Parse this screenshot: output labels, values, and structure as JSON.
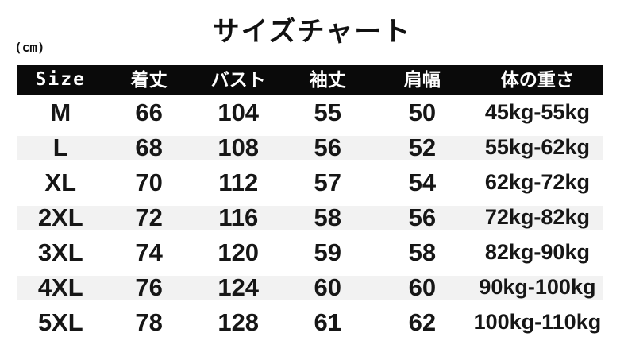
{
  "page": {
    "title": "サイズチャート",
    "unit_label": "(cm)"
  },
  "colors": {
    "header_bg": "#0a0a0a",
    "header_text": "#ffffff",
    "stripe_bg": "#f2f2f2",
    "text": "#161616",
    "background": "#ffffff"
  },
  "chart_data": {
    "type": "table",
    "title": "サイズチャート",
    "unit": "cm",
    "columns": [
      "Size",
      "着丈",
      "バスト",
      "袖丈",
      "肩幅",
      "体の重さ"
    ],
    "rows": [
      [
        "M",
        66,
        104,
        55,
        50,
        "45kg-55kg"
      ],
      [
        "L",
        68,
        108,
        56,
        52,
        "55kg-62kg"
      ],
      [
        "XL",
        70,
        112,
        57,
        54,
        "62kg-72kg"
      ],
      [
        "2XL",
        72,
        116,
        58,
        56,
        "72kg-82kg"
      ],
      [
        "3XL",
        74,
        120,
        59,
        58,
        "82kg-90kg"
      ],
      [
        "4XL",
        76,
        124,
        60,
        60,
        "90kg-100kg"
      ],
      [
        "5XL",
        78,
        128,
        61,
        62,
        "100kg-110kg"
      ]
    ]
  }
}
